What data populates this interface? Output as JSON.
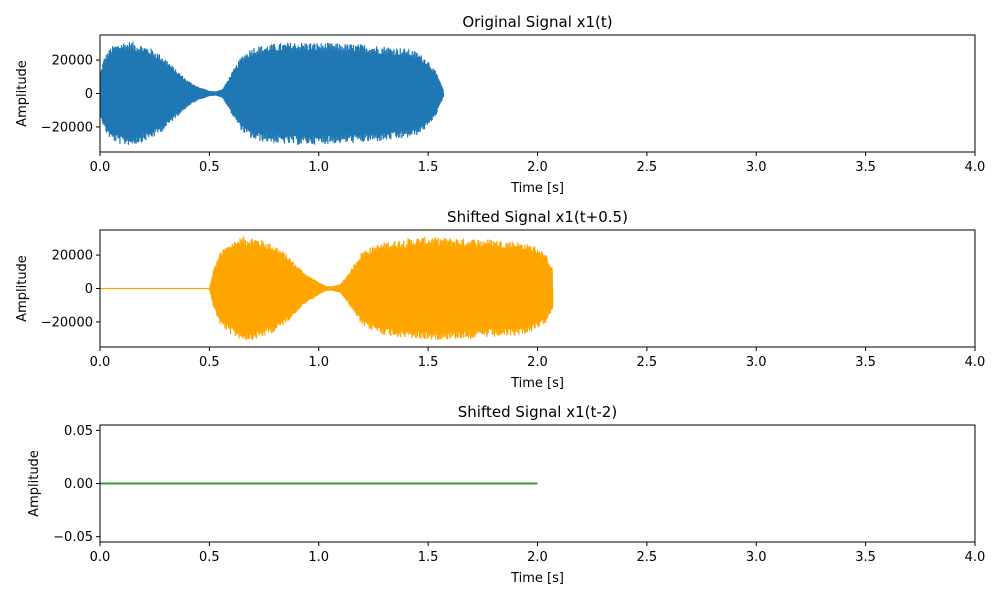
{
  "chart_data": [
    {
      "type": "line",
      "title": "Original Signal x1(t)",
      "xlabel": "Time [s]",
      "ylabel": "Amplitude",
      "xlim": [
        0,
        4
      ],
      "ylim": [
        -35000,
        35000
      ],
      "xticks": [
        0,
        0.5,
        1.0,
        1.5,
        2.0,
        2.5,
        3.0,
        3.5,
        4.0
      ],
      "xtick_labels": [
        "0.0",
        "0.5",
        "1.0",
        "1.5",
        "2.0",
        "2.5",
        "3.0",
        "3.5",
        "4.0"
      ],
      "yticks": [
        -20000,
        0,
        20000
      ],
      "ytick_labels": [
        "−20000",
        "0",
        "20000"
      ],
      "color": "#1f77b4",
      "envelope": {
        "t": [
          0,
          0.02,
          0.05,
          0.1,
          0.15,
          0.2,
          0.25,
          0.3,
          0.35,
          0.4,
          0.45,
          0.5,
          0.53,
          0.56,
          0.6,
          0.65,
          0.7,
          0.8,
          0.9,
          1.0,
          1.1,
          1.2,
          1.3,
          1.4,
          1.45,
          1.5,
          1.54,
          1.57
        ],
        "amp": [
          12000,
          22000,
          28000,
          31000,
          31000,
          29000,
          26000,
          21000,
          14000,
          8000,
          4000,
          1500,
          1200,
          2500,
          12000,
          23000,
          28000,
          30000,
          31000,
          30500,
          30000,
          29500,
          28500,
          27000,
          25000,
          20000,
          12000,
          2000
        ]
      }
    },
    {
      "type": "line",
      "title": "Shifted Signal x1(t+0.5)",
      "xlabel": "Time [s]",
      "ylabel": "Amplitude",
      "xlim": [
        0,
        4
      ],
      "ylim": [
        -35000,
        35000
      ],
      "xticks": [
        0,
        0.5,
        1.0,
        1.5,
        2.0,
        2.5,
        3.0,
        3.5,
        4.0
      ],
      "xtick_labels": [
        "0.0",
        "0.5",
        "1.0",
        "1.5",
        "2.0",
        "2.5",
        "3.0",
        "3.5",
        "4.0"
      ],
      "yticks": [
        -20000,
        0,
        20000
      ],
      "ytick_labels": [
        "−20000",
        "0",
        "20000"
      ],
      "color": "#ffa500",
      "envelope": {
        "t": [
          0,
          0.5,
          0.52,
          0.55,
          0.6,
          0.65,
          0.7,
          0.75,
          0.8,
          0.85,
          0.9,
          0.95,
          1.0,
          1.03,
          1.06,
          1.1,
          1.15,
          1.2,
          1.3,
          1.4,
          1.5,
          1.6,
          1.7,
          1.8,
          1.9,
          1.95,
          2.0,
          2.04,
          2.07
        ],
        "amp": [
          0,
          0,
          12000,
          22000,
          28000,
          31000,
          31000,
          29000,
          26000,
          21000,
          14000,
          8000,
          4000,
          1500,
          1200,
          2500,
          12000,
          23000,
          28000,
          30000,
          31000,
          30500,
          30000,
          29500,
          28500,
          27000,
          25000,
          20000,
          12000
        ]
      }
    },
    {
      "type": "line",
      "title": "Shifted Signal x1(t-2)",
      "xlabel": "Time [s]",
      "ylabel": "Amplitude",
      "xlim": [
        0,
        4
      ],
      "ylim": [
        -0.055,
        0.055
      ],
      "xticks": [
        0,
        0.5,
        1.0,
        1.5,
        2.0,
        2.5,
        3.0,
        3.5,
        4.0
      ],
      "xtick_labels": [
        "0.0",
        "0.5",
        "1.0",
        "1.5",
        "2.0",
        "2.5",
        "3.0",
        "3.5",
        "4.0"
      ],
      "yticks": [
        -0.05,
        0,
        0.05
      ],
      "ytick_labels": [
        "−0.05",
        "0.00",
        "0.05"
      ],
      "color": "#2ca02c",
      "x": [
        0,
        2.0
      ],
      "y": [
        0,
        0
      ]
    }
  ]
}
